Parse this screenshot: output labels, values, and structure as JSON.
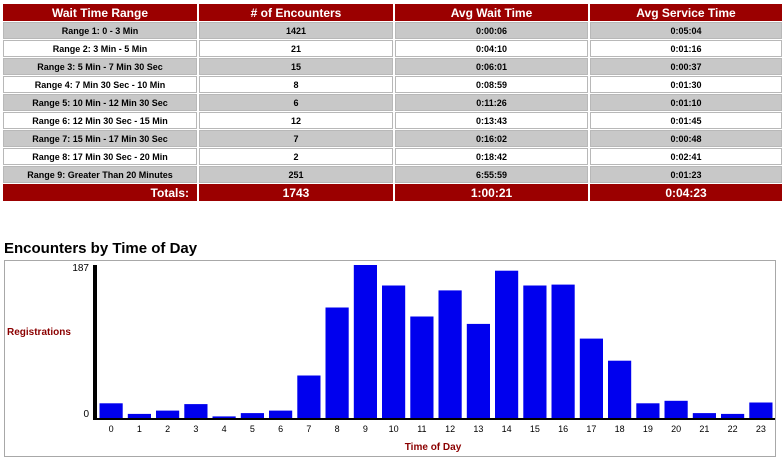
{
  "table": {
    "headers": [
      "Wait Time Range",
      "# of Encounters",
      "Avg Wait Time",
      "Avg Service Time"
    ],
    "rows": [
      [
        "Range 1: 0 - 3 Min",
        "1421",
        "0:00:06",
        "0:05:04"
      ],
      [
        "Range 2: 3 Min - 5 Min",
        "21",
        "0:04:10",
        "0:01:16"
      ],
      [
        "Range 3: 5 Min - 7 Min 30 Sec",
        "15",
        "0:06:01",
        "0:00:37"
      ],
      [
        "Range 4: 7 Min 30 Sec - 10 Min",
        "8",
        "0:08:59",
        "0:01:30"
      ],
      [
        "Range 5: 10 Min - 12 Min 30 Sec",
        "6",
        "0:11:26",
        "0:01:10"
      ],
      [
        "Range 6: 12 Min 30 Sec - 15 Min",
        "12",
        "0:13:43",
        "0:01:45"
      ],
      [
        "Range 7: 15 Min - 17 Min 30 Sec",
        "7",
        "0:16:02",
        "0:00:48"
      ],
      [
        "Range 8: 17 Min 30 Sec - 20 Min",
        "2",
        "0:18:42",
        "0:02:41"
      ],
      [
        "Range 9: Greater Than 20 Minutes",
        "251",
        "6:55:59",
        "0:01:23"
      ]
    ],
    "totals": [
      "Totals:",
      "1743",
      "1:00:21",
      "0:04:23"
    ]
  },
  "chart_title": "Encounters by Time of Day",
  "chart_data": {
    "type": "bar",
    "title": "",
    "xlabel": "Time of Day",
    "ylabel": "Registrations",
    "categories": [
      "0",
      "1",
      "2",
      "3",
      "4",
      "5",
      "6",
      "7",
      "8",
      "9",
      "10",
      "11",
      "12",
      "13",
      "14",
      "15",
      "16",
      "17",
      "18",
      "19",
      "20",
      "21",
      "22",
      "23"
    ],
    "values": [
      18,
      5,
      9,
      17,
      2,
      6,
      9,
      52,
      135,
      187,
      162,
      124,
      156,
      115,
      180,
      162,
      163,
      97,
      70,
      18,
      21,
      6,
      5,
      19
    ],
    "ylim": [
      0,
      187
    ],
    "ytick_labels": [
      "0",
      "187"
    ],
    "grid": false,
    "bar_color": "#0000ee",
    "axis_label_color": "#8b0000"
  }
}
